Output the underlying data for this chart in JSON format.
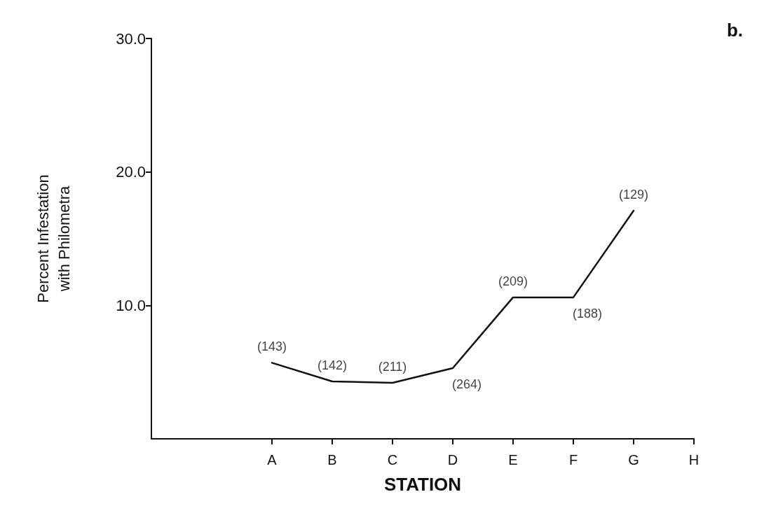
{
  "chart_data": {
    "type": "line",
    "xlabel": "STATION",
    "ylabel": "Percent Infestation\nwith Philometra",
    "categories": [
      null,
      null,
      "A",
      "B",
      "C",
      "D",
      "E",
      "F",
      "G",
      "H"
    ],
    "series": [
      {
        "color": "#111111",
        "values": [
          null,
          null,
          5.7,
          4.3,
          4.2,
          5.3,
          10.6,
          10.6,
          17.1,
          null
        ]
      }
    ],
    "ylim": [
      0,
      30
    ],
    "yticks": [
      {
        "value": 10,
        "label": "10.0"
      },
      {
        "value": 20,
        "label": "20.0"
      },
      {
        "value": 30,
        "label": "30.0"
      }
    ],
    "grid": false,
    "marker": "none",
    "line_style": "solid",
    "annotations": [
      "b.",
      {
        "text": "(143)",
        "x": "A",
        "y": 5.7
      },
      {
        "text": "(142)",
        "x": "B",
        "y": 4.3
      },
      {
        "text": "(211)",
        "x": "C",
        "y": 4.2
      },
      {
        "text": "(264)",
        "x": "D",
        "y": 5.3
      },
      {
        "text": "(209)",
        "x": "E",
        "y": 10.6
      },
      {
        "text": "(188)",
        "x": "F",
        "y": 10.6
      },
      {
        "text": "(129)",
        "x": "G",
        "y": 17.1
      }
    ]
  }
}
